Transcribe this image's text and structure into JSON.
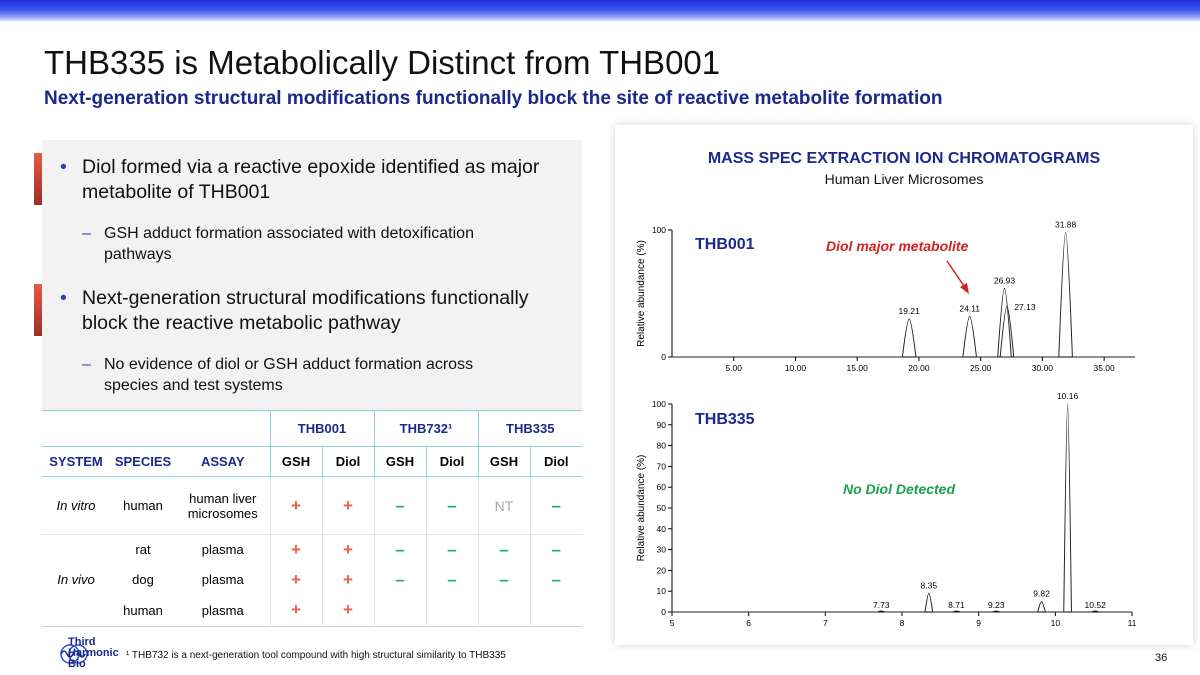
{
  "slide": {
    "title": "THB335 is Metabolically Distinct from THB001",
    "subtitle": "Next-generation structural modifications functionally block the site of reactive metabolite formation",
    "page_number": "36",
    "footnote": "¹ THB732 is a next-generation tool compound with high structural similarity to THB335",
    "logo": {
      "line1": "Third",
      "line2": "Harmonic",
      "line3": "Bio",
      "icon": "waveform-logo-icon"
    }
  },
  "bullets": [
    {
      "text": "Diol formed via a reactive epoxide identified as major metabolite of THB001",
      "sub": "GSH adduct formation associated with detoxification pathways"
    },
    {
      "text": "Next-generation structural modifications functionally block the reactive metabolic pathway",
      "sub": "No evidence of diol or GSH adduct formation across species and test systems"
    }
  ],
  "table": {
    "compounds": [
      "THB001",
      "THB732¹",
      "THB335"
    ],
    "columns": [
      "SYSTEM",
      "SPECIES",
      "ASSAY",
      "GSH",
      "Diol",
      "GSH",
      "Diol",
      "GSH",
      "Diol"
    ],
    "rows": [
      {
        "system": "In vitro",
        "species": "human",
        "assay": "human liver microsomes",
        "cells": [
          "+",
          "+",
          "–",
          "–",
          "NT",
          "–"
        ]
      },
      {
        "system": "",
        "species": "rat",
        "assay": "plasma",
        "cells": [
          "+",
          "+",
          "–",
          "–",
          "–",
          "–"
        ]
      },
      {
        "system": "In vivo",
        "species": "dog",
        "assay": "plasma",
        "cells": [
          "+",
          "+",
          "–",
          "–",
          "–",
          "–"
        ]
      },
      {
        "system": "",
        "species": "human",
        "assay": "plasma",
        "cells": [
          "+",
          "+",
          "",
          "",
          "",
          ""
        ]
      }
    ]
  },
  "chart_data": [
    {
      "type": "line",
      "title": "MASS SPEC EXTRACTION ION CHROMATOGRAMS",
      "subtitle": "Human Liver Microsomes",
      "series_label": "THB001",
      "annotation": "Diol major metabolite",
      "ylabel": "Relative abundance (%)",
      "xlim": [
        0,
        37.5
      ],
      "ylim": [
        0,
        100
      ],
      "xticks": [
        "5.00",
        "10.00",
        "15.00",
        "20.00",
        "25.00",
        "30.00",
        "35.00"
      ],
      "yticks": [
        "0",
        "100"
      ],
      "peaks": [
        {
          "x": 19.21,
          "height": 30,
          "label": "19.21"
        },
        {
          "x": 24.11,
          "height": 32,
          "label": "24.11"
        },
        {
          "x": 26.93,
          "height": 54,
          "label": "26.93"
        },
        {
          "x": 27.13,
          "height": 40,
          "label": "27.13"
        },
        {
          "x": 31.88,
          "height": 98,
          "label": "31.88"
        }
      ]
    },
    {
      "type": "line",
      "series_label": "THB335",
      "annotation": "No Diol Detected",
      "ylabel": "Relative abundance (%)",
      "xlim": [
        5,
        11
      ],
      "ylim": [
        0,
        100
      ],
      "xticks": [
        "5",
        "6",
        "7",
        "8",
        "9",
        "10",
        "11"
      ],
      "yticks": [
        "0",
        "10",
        "20",
        "30",
        "40",
        "50",
        "60",
        "70",
        "80",
        "90",
        "100"
      ],
      "peaks": [
        {
          "x": 7.73,
          "height": 0.5,
          "label": "7.73"
        },
        {
          "x": 8.35,
          "height": 9,
          "label": "8.35"
        },
        {
          "x": 8.71,
          "height": 0.5,
          "label": "8.71"
        },
        {
          "x": 9.23,
          "height": 0.5,
          "label": "9.23"
        },
        {
          "x": 9.82,
          "height": 5,
          "label": "9.82"
        },
        {
          "x": 10.16,
          "height": 100,
          "label": "10.16"
        },
        {
          "x": 10.52,
          "height": 0.5,
          "label": "10.52"
        }
      ]
    }
  ],
  "colors": {
    "navy": "#1a2a8a",
    "plus": "#e8604a",
    "minus": "#24a88c",
    "annotation_red": "#d42020",
    "annotation_green": "#1aa34a"
  }
}
